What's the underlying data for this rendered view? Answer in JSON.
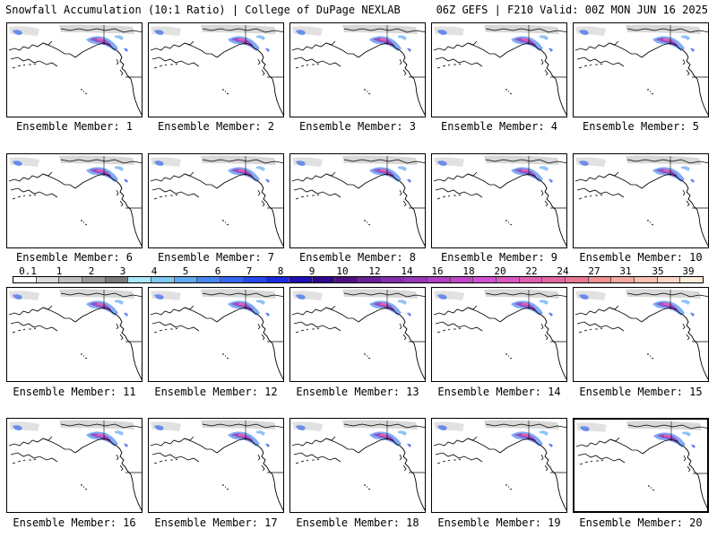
{
  "header": {
    "title_left": "Snowfall Accumulation (10:1 Ratio) | College of DuPage NEXLAB",
    "title_right": "06Z GEFS | F210 Valid: 00Z MON JUN 16 2025"
  },
  "panels": [
    {
      "label": "Ensemble Member: 1"
    },
    {
      "label": "Ensemble Member: 2"
    },
    {
      "label": "Ensemble Member: 3"
    },
    {
      "label": "Ensemble Member: 4"
    },
    {
      "label": "Ensemble Member: 5"
    },
    {
      "label": "Ensemble Member: 6"
    },
    {
      "label": "Ensemble Member: 7"
    },
    {
      "label": "Ensemble Member: 8"
    },
    {
      "label": "Ensemble Member: 9"
    },
    {
      "label": "Ensemble Member: 10"
    },
    {
      "label": "Ensemble Member: 11"
    },
    {
      "label": "Ensemble Member: 12"
    },
    {
      "label": "Ensemble Member: 13"
    },
    {
      "label": "Ensemble Member: 14"
    },
    {
      "label": "Ensemble Member: 15"
    },
    {
      "label": "Ensemble Member: 16"
    },
    {
      "label": "Ensemble Member: 17"
    },
    {
      "label": "Ensemble Member: 18"
    },
    {
      "label": "Ensemble Member: 19"
    },
    {
      "label": "Ensemble Member: 20"
    }
  ],
  "colorbar": {
    "ticks": [
      "0.1",
      "1",
      "2",
      "3",
      "4",
      "5",
      "6",
      "7",
      "8",
      "9",
      "10",
      "12",
      "14",
      "16",
      "18",
      "20",
      "22",
      "24",
      "27",
      "31",
      "35",
      "39"
    ],
    "colors": [
      "#ffffff",
      "#dcdcdc",
      "#c0c0c0",
      "#9a9a9a",
      "#7a7a7a",
      "#a8e8f8",
      "#80c8f0",
      "#60a8f0",
      "#4a88f0",
      "#3868f0",
      "#2848e8",
      "#1a2ae0",
      "#2010b0",
      "#300890",
      "#501080",
      "#6a2098",
      "#8030a8",
      "#9838b8",
      "#b040c0",
      "#c048c8",
      "#d050d0",
      "#d858c0",
      "#e060b0",
      "#e068a0",
      "#e87890",
      "#f09090",
      "#f4a8a0",
      "#f8c0b0",
      "#fad8c8",
      "#fcecdc"
    ]
  }
}
